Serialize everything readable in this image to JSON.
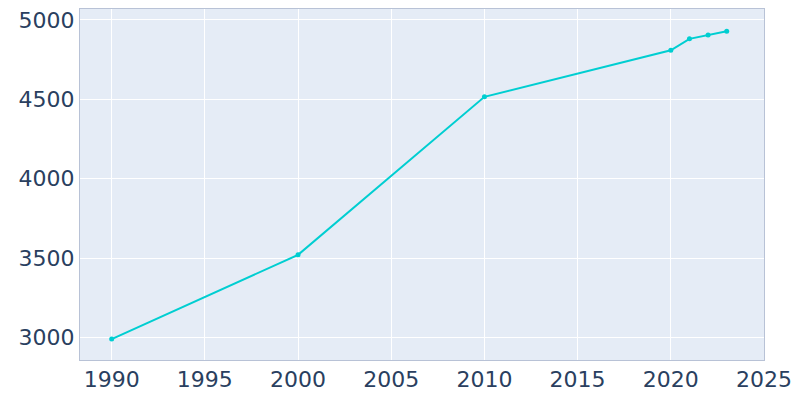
{
  "chart_data": {
    "type": "line",
    "x": [
      1990,
      2000,
      2010,
      2020,
      2021,
      2022,
      2023
    ],
    "values": [
      2990,
      3520,
      4515,
      4808,
      4880,
      4905,
      4928
    ],
    "color": "#00ced1",
    "marker": "circle",
    "xlim": [
      1988.3,
      2025
    ],
    "ylim": [
      2858,
      5068
    ],
    "xticks": [
      1990,
      1995,
      2000,
      2005,
      2010,
      2015,
      2020,
      2025
    ],
    "yticks": [
      3000,
      3500,
      4000,
      4500,
      5000
    ],
    "grid": true
  }
}
